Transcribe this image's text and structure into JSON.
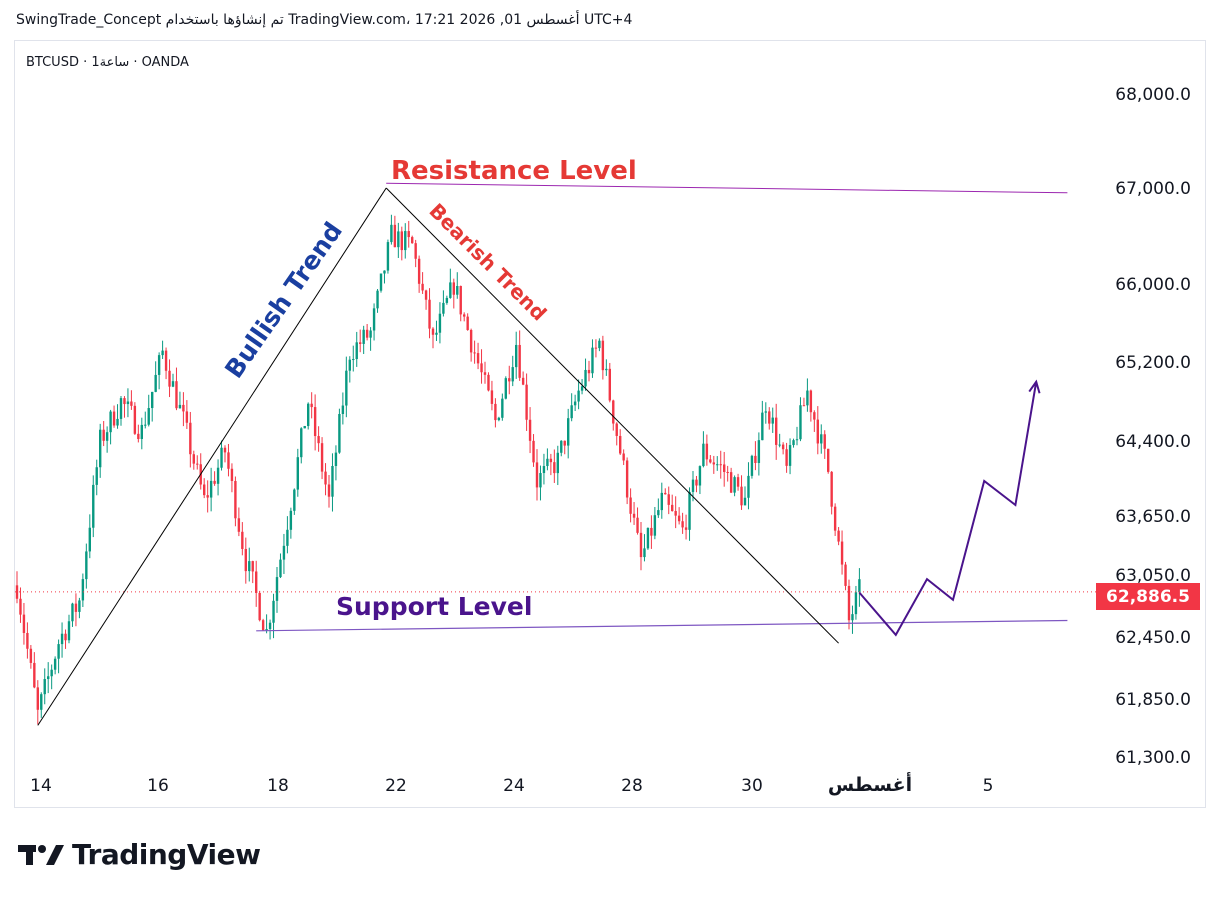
{
  "header": {
    "text": "SwingTrade_Concept تم إنشاؤها باستخدام TradingView.com، 17:21 2026 ,01 أغسطس UTC+4"
  },
  "symbol": {
    "text": "BTCUSD · 1ساعة · OANDA"
  },
  "brand": {
    "name": "TradingView"
  },
  "colors": {
    "up": "#089981",
    "down": "#f23645",
    "resistance": "#9c27b0",
    "support": "#7e57c2",
    "trendline": "#000000",
    "projection": "#4a148c"
  },
  "chart_data": {
    "type": "candlestick",
    "symbol": "BTCUSD",
    "interval": "1 ساعة",
    "exchange": "OANDA",
    "y_ticks": [
      "68,000.0",
      "67,000.0",
      "66,000.0",
      "65,200.0",
      "64,400.0",
      "63,650.0",
      "63,050.0",
      "62,450.0",
      "61,850.0",
      "61,300.0"
    ],
    "y_tick_values": [
      68000,
      67000,
      66000,
      65200,
      64400,
      63650,
      63050,
      62450,
      61850,
      61300
    ],
    "x_ticks": [
      "14",
      "16",
      "18",
      "22",
      "24",
      "28",
      "30",
      "أغسطس",
      "5"
    ],
    "last_price": "62,886.5",
    "close_path": [
      {
        "t": 0,
        "v": 62950
      },
      {
        "t": 2,
        "v": 61700
      },
      {
        "t": 4,
        "v": 62400
      },
      {
        "t": 6,
        "v": 62800
      },
      {
        "t": 8,
        "v": 64400
      },
      {
        "t": 10,
        "v": 64800
      },
      {
        "t": 12,
        "v": 64500
      },
      {
        "t": 14,
        "v": 65300
      },
      {
        "t": 16,
        "v": 64600
      },
      {
        "t": 18,
        "v": 63800
      },
      {
        "t": 20,
        "v": 64300
      },
      {
        "t": 22,
        "v": 63200
      },
      {
        "t": 24,
        "v": 62500
      },
      {
        "t": 26,
        "v": 63600
      },
      {
        "t": 28,
        "v": 64800
      },
      {
        "t": 30,
        "v": 63800
      },
      {
        "t": 32,
        "v": 65300
      },
      {
        "t": 34,
        "v": 65500
      },
      {
        "t": 36,
        "v": 66500
      },
      {
        "t": 38,
        "v": 66400
      },
      {
        "t": 40,
        "v": 65400
      },
      {
        "t": 42,
        "v": 66000
      },
      {
        "t": 44,
        "v": 65300
      },
      {
        "t": 46,
        "v": 64600
      },
      {
        "t": 48,
        "v": 65400
      },
      {
        "t": 50,
        "v": 64000
      },
      {
        "t": 52,
        "v": 64200
      },
      {
        "t": 54,
        "v": 64900
      },
      {
        "t": 56,
        "v": 65400
      },
      {
        "t": 58,
        "v": 64300
      },
      {
        "t": 60,
        "v": 63200
      },
      {
        "t": 62,
        "v": 63800
      },
      {
        "t": 64,
        "v": 63500
      },
      {
        "t": 66,
        "v": 64300
      },
      {
        "t": 68,
        "v": 64100
      },
      {
        "t": 70,
        "v": 63800
      },
      {
        "t": 72,
        "v": 64800
      },
      {
        "t": 74,
        "v": 64100
      },
      {
        "t": 76,
        "v": 64900
      },
      {
        "t": 78,
        "v": 64100
      },
      {
        "t": 80,
        "v": 62600
      },
      {
        "t": 81,
        "v": 62886.5
      }
    ],
    "annotations": [
      {
        "text": "Resistance Level",
        "color": "#e53935"
      },
      {
        "text": "Bullish Trend",
        "color": "#1a3fa0"
      },
      {
        "text": "Bearish Trend",
        "color": "#e53935"
      },
      {
        "text": "Support Level",
        "color": "#4a148c"
      }
    ],
    "lines": {
      "resistance": [
        {
          "t": 35.5,
          "v": 67050
        },
        {
          "t": 101,
          "v": 66950
        }
      ],
      "support": [
        {
          "t": 23,
          "v": 62510
        },
        {
          "t": 101,
          "v": 62610
        }
      ],
      "bullish_trend": [
        {
          "t": 2,
          "v": 61600
        },
        {
          "t": 35.5,
          "v": 67000
        }
      ],
      "bearish_trend": [
        {
          "t": 35.5,
          "v": 67000
        },
        {
          "t": 79,
          "v": 62390
        }
      ],
      "projection": [
        {
          "t": 81,
          "v": 62880
        },
        {
          "t": 84.5,
          "v": 62470
        },
        {
          "t": 87.5,
          "v": 63010
        },
        {
          "t": 90,
          "v": 62810
        },
        {
          "t": 93,
          "v": 64000
        },
        {
          "t": 96,
          "v": 63760
        },
        {
          "t": 98,
          "v": 65000
        }
      ]
    }
  }
}
